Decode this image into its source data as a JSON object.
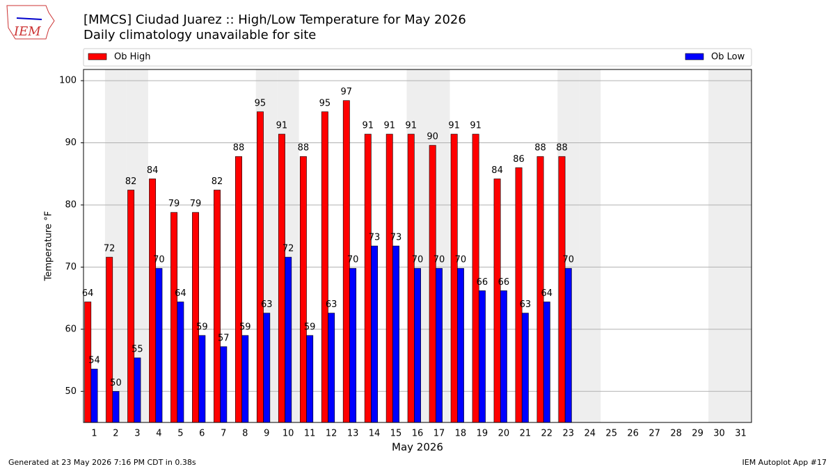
{
  "chart_data": {
    "type": "bar",
    "title": "[MMCS] Ciudad Juarez :: High/Low Temperature for May 2026",
    "subtitle": "Daily climatology unavailable for site",
    "x_label": "May 2026",
    "y_label": "Temperature °F",
    "footer_left": "Generated at 23 May 2026 7:16 PM CDT in 0.38s",
    "footer_right": "IEM Autoplot App #17",
    "logo_text": "IEM",
    "categories": [
      "1",
      "2",
      "3",
      "4",
      "5",
      "6",
      "7",
      "8",
      "9",
      "10",
      "11",
      "12",
      "13",
      "14",
      "15",
      "16",
      "17",
      "18",
      "19",
      "20",
      "21",
      "22",
      "23",
      "24",
      "25",
      "26",
      "27",
      "28",
      "29",
      "30",
      "31"
    ],
    "shaded_days": [
      2,
      3,
      9,
      10,
      16,
      17,
      23,
      24,
      30,
      31
    ],
    "series": [
      {
        "name": "Ob High",
        "color": "#ff0000",
        "values": [
          64.4,
          71.6,
          82.4,
          84.2,
          78.8,
          78.8,
          82.4,
          87.8,
          95,
          91.4,
          87.8,
          95,
          96.8,
          91.4,
          91.4,
          91.4,
          89.6,
          91.4,
          91.4,
          84.2,
          86,
          87.8,
          87.8,
          null,
          null,
          null,
          null,
          null,
          null,
          null,
          null
        ],
        "value_labels": [
          "64",
          "72",
          "82",
          "84",
          "79",
          "79",
          "82",
          "88",
          "95",
          "91",
          "88",
          "95",
          "97",
          "91",
          "91",
          "91",
          "90",
          "91",
          "91",
          "84",
          "86",
          "88",
          "88",
          null,
          null,
          null,
          null,
          null,
          null,
          null,
          null
        ]
      },
      {
        "name": "Ob Low",
        "color": "#0000ff",
        "values": [
          53.6,
          50,
          55.4,
          69.8,
          64.4,
          59,
          57.2,
          59,
          62.6,
          71.6,
          59,
          62.6,
          69.8,
          73.4,
          73.4,
          69.8,
          69.8,
          69.8,
          66.2,
          66.2,
          62.6,
          64.4,
          69.8,
          null,
          null,
          null,
          null,
          null,
          null,
          null,
          null
        ],
        "value_labels": [
          "54",
          "50",
          "55",
          "70",
          "64",
          "59",
          "57",
          "59",
          "63",
          "72",
          "59",
          "63",
          "70",
          "73",
          "73",
          "70",
          "70",
          "70",
          "66",
          "66",
          "63",
          "64",
          "70",
          null,
          null,
          null,
          null,
          null,
          null,
          null,
          null
        ]
      }
    ],
    "ylim": [
      45,
      101.8
    ],
    "yticks": [
      50,
      60,
      70,
      80,
      90,
      100
    ],
    "grid": true
  }
}
